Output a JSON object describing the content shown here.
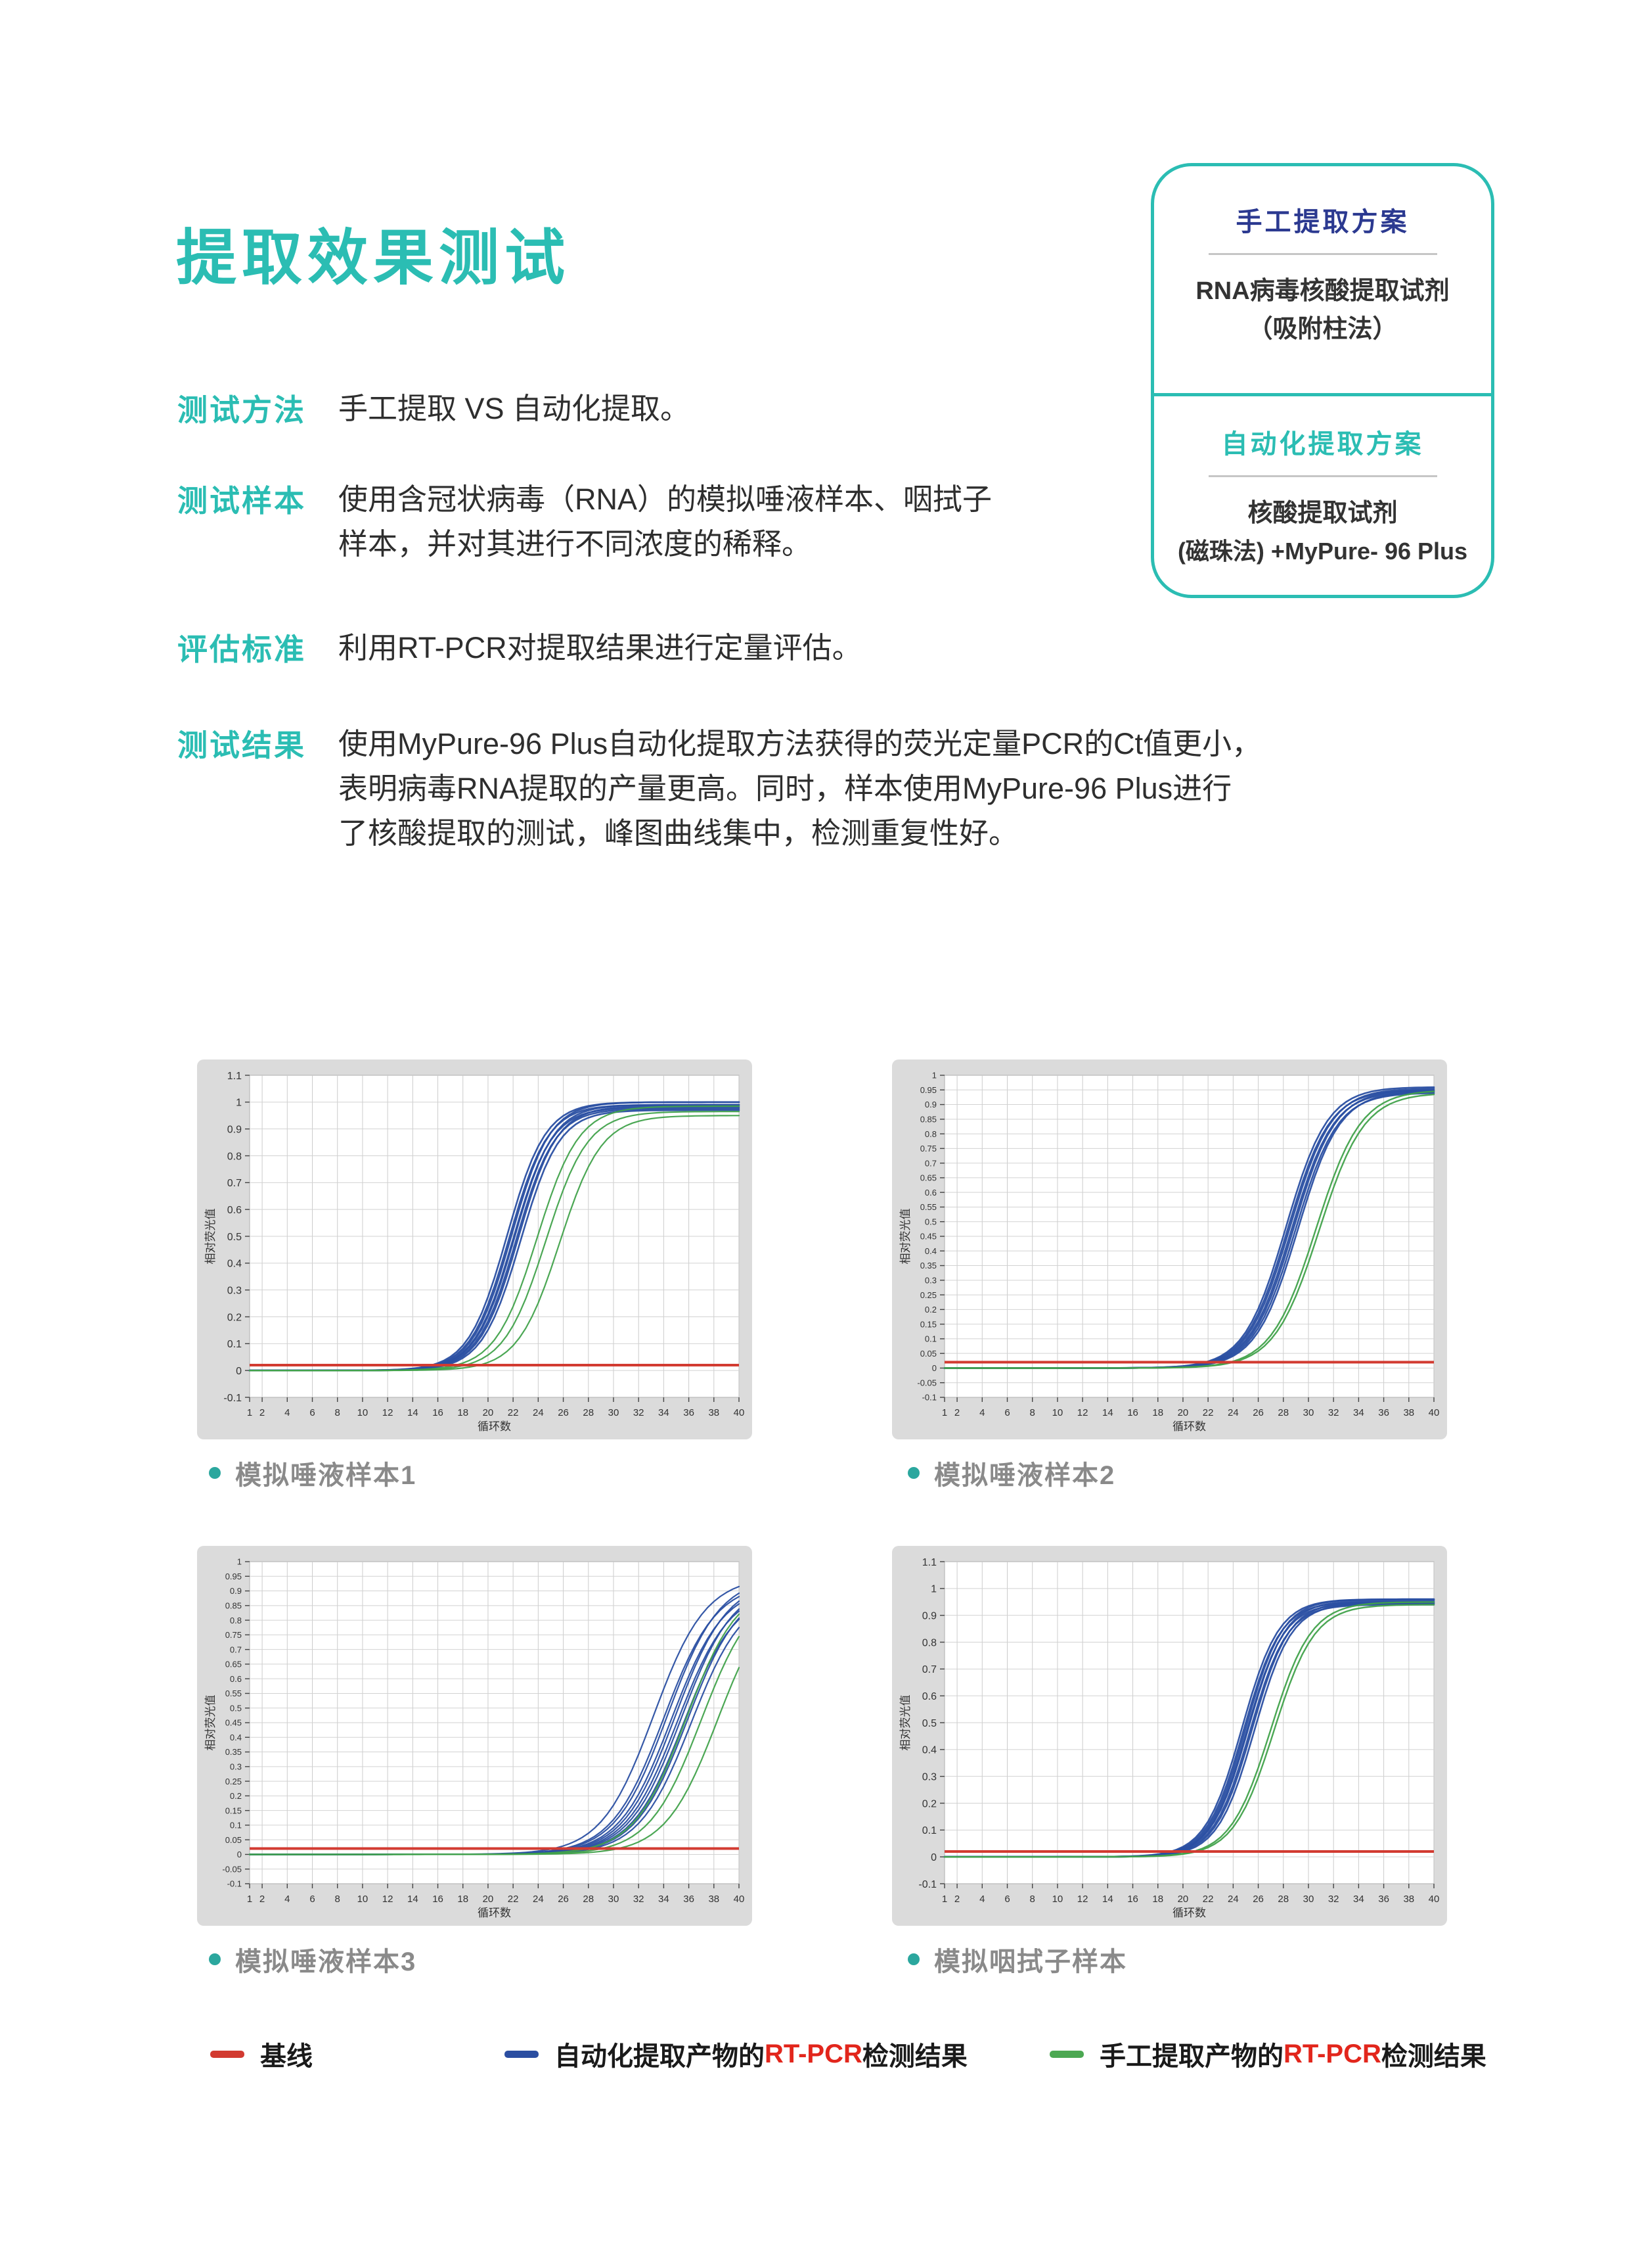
{
  "header": {
    "title": "提取效果测试"
  },
  "colors": {
    "accent_teal": "#2BBDB3",
    "header_dark_blue": "#2B3990",
    "caption_gray": "#8A8A8A",
    "curve_blue": "#2A4FA2",
    "curve_green": "#41A24B",
    "baseline_red": "#D23B31",
    "legend_highlight_red": "#E2261C",
    "chart_panel_gray": "#DBDBDB"
  },
  "info_rows": [
    {
      "label": "测试方法",
      "lines": [
        "手工提取 VS 自动化提取。"
      ]
    },
    {
      "label": "测试样本",
      "lines": [
        "使用含冠状病毒（RNA）的模拟唾液样本、咽拭子",
        "样本，并对其进行不同浓度的稀释。"
      ]
    },
    {
      "label": "评估标准",
      "lines": [
        "利用RT-PCR对提取结果进行定量评估。"
      ]
    },
    {
      "label": "测试结果",
      "lines": [
        "使用MyPure-96 Plus自动化提取方法获得的荧光定量PCR的Ct值更小，",
        "表明病毒RNA提取的产量更高。同时，样本使用MyPure-96 Plus进行",
        "了核酸提取的测试，峰图曲线集中，检测重复性好。"
      ]
    }
  ],
  "scheme_box": {
    "sections": [
      {
        "title": "手工提取方案",
        "lines": [
          "RNA病毒核酸提取试剂",
          "（吸附柱法）"
        ]
      },
      {
        "title": "自动化提取方案",
        "lines": [
          "核酸提取试剂",
          "(磁珠法) +MyPure- 96 Plus"
        ]
      }
    ]
  },
  "chart_data": [
    {
      "type": "line",
      "title": "模拟唾液样本1",
      "xlabel": "循环数",
      "ylabel": "相对荧光值",
      "xlim": [
        1,
        40
      ],
      "ylim": [
        -0.1,
        1.1
      ],
      "ytick_step": 0.1,
      "xticks": [
        1,
        2,
        4,
        6,
        8,
        10,
        12,
        14,
        16,
        18,
        20,
        22,
        24,
        26,
        28,
        30,
        32,
        34,
        36,
        38,
        40
      ],
      "grid": true,
      "panel_color": "#DBDBDB",
      "baseline": {
        "name": "基线",
        "color": "#D23B31",
        "value": 0.02
      },
      "series": [
        {
          "name": "自动化提取产物的RT-PCR检测结果",
          "color": "#2A4FA2",
          "stroke_width": 2.6,
          "curves": [
            {
              "ct": 21.5,
              "slope": 0.65,
              "plateau": 1.0
            },
            {
              "ct": 21.7,
              "slope": 0.65,
              "plateau": 0.99
            },
            {
              "ct": 21.85,
              "slope": 0.65,
              "plateau": 1.0
            },
            {
              "ct": 22.0,
              "slope": 0.65,
              "plateau": 0.98
            },
            {
              "ct": 22.1,
              "slope": 0.65,
              "plateau": 0.99
            },
            {
              "ct": 22.25,
              "slope": 0.65,
              "plateau": 0.975
            },
            {
              "ct": 22.4,
              "slope": 0.65,
              "plateau": 0.985
            },
            {
              "ct": 22.6,
              "slope": 0.65,
              "plateau": 0.97
            }
          ]
        },
        {
          "name": "手工提取产物的RT-PCR检测结果",
          "color": "#41A24B",
          "stroke_width": 2.2,
          "curves": [
            {
              "ct": 23.9,
              "slope": 0.6,
              "plateau": 0.985
            },
            {
              "ct": 24.6,
              "slope": 0.6,
              "plateau": 0.965
            },
            {
              "ct": 25.7,
              "slope": 0.6,
              "plateau": 0.95
            }
          ]
        }
      ]
    },
    {
      "type": "line",
      "title": "模拟唾液样本2",
      "xlabel": "循环数",
      "ylabel": "相对荧光值",
      "xlim": [
        1,
        40
      ],
      "ylim": [
        -0.1,
        1.0
      ],
      "ytick_step": 0.05,
      "xticks": [
        1,
        2,
        4,
        6,
        8,
        10,
        12,
        14,
        16,
        18,
        20,
        22,
        24,
        26,
        28,
        30,
        32,
        34,
        36,
        38,
        40
      ],
      "grid": true,
      "panel_color": "#DBDBDB",
      "baseline": {
        "name": "基线",
        "color": "#D23B31",
        "value": 0.02
      },
      "series": [
        {
          "name": "自动化提取产物的RT-PCR检测结果",
          "color": "#2A4FA2",
          "stroke_width": 2.6,
          "curves": [
            {
              "ct": 28.2,
              "slope": 0.6,
              "plateau": 0.96
            },
            {
              "ct": 28.35,
              "slope": 0.6,
              "plateau": 0.95
            },
            {
              "ct": 28.5,
              "slope": 0.6,
              "plateau": 0.955
            },
            {
              "ct": 28.65,
              "slope": 0.6,
              "plateau": 0.945
            },
            {
              "ct": 28.8,
              "slope": 0.6,
              "plateau": 0.95
            },
            {
              "ct": 28.95,
              "slope": 0.6,
              "plateau": 0.94
            },
            {
              "ct": 29.15,
              "slope": 0.6,
              "plateau": 0.945
            }
          ]
        },
        {
          "name": "手工提取产物的RT-PCR检测结果",
          "color": "#41A24B",
          "stroke_width": 2.4,
          "curves": [
            {
              "ct": 30.6,
              "slope": 0.56,
              "plateau": 0.95
            },
            {
              "ct": 30.85,
              "slope": 0.56,
              "plateau": 0.94
            }
          ]
        }
      ]
    },
    {
      "type": "line",
      "title": "模拟唾液样本3",
      "xlabel": "循环数",
      "ylabel": "相对荧光值",
      "xlim": [
        1,
        40
      ],
      "ylim": [
        -0.1,
        1.0
      ],
      "ytick_step": 0.05,
      "xticks": [
        1,
        2,
        4,
        6,
        8,
        10,
        12,
        14,
        16,
        18,
        20,
        22,
        24,
        26,
        28,
        30,
        32,
        34,
        36,
        38,
        40
      ],
      "grid": true,
      "panel_color": "#DBDBDB",
      "baseline": {
        "name": "基线",
        "color": "#D23B31",
        "value": 0.02
      },
      "series": [
        {
          "name": "自动化提取产物的RT-PCR检测结果",
          "color": "#2A4FA2",
          "stroke_width": 2.2,
          "curves": [
            {
              "ct": 33.2,
              "slope": 0.48,
              "plateau": 0.95
            },
            {
              "ct": 34.0,
              "slope": 0.48,
              "plateau": 0.93
            },
            {
              "ct": 34.3,
              "slope": 0.48,
              "plateau": 0.95
            },
            {
              "ct": 34.6,
              "slope": 0.48,
              "plateau": 0.92
            },
            {
              "ct": 34.9,
              "slope": 0.48,
              "plateau": 0.94
            },
            {
              "ct": 35.1,
              "slope": 0.48,
              "plateau": 0.91
            },
            {
              "ct": 35.4,
              "slope": 0.48,
              "plateau": 0.93
            },
            {
              "ct": 35.6,
              "slope": 0.48,
              "plateau": 0.9
            },
            {
              "ct": 35.9,
              "slope": 0.48,
              "plateau": 0.92
            },
            {
              "ct": 36.2,
              "slope": 0.48,
              "plateau": 0.9
            }
          ]
        },
        {
          "name": "手工提取产物的RT-PCR检测结果",
          "color": "#41A24B",
          "stroke_width": 2.2,
          "curves": [
            {
              "ct": 35.8,
              "slope": 0.48,
              "plateau": 0.93
            },
            {
              "ct": 37.0,
              "slope": 0.48,
              "plateau": 0.92
            },
            {
              "ct": 38.3,
              "slope": 0.48,
              "plateau": 0.92
            }
          ]
        }
      ]
    },
    {
      "type": "line",
      "title": "模拟咽拭子样本",
      "xlabel": "循环数",
      "ylabel": "相对荧光值",
      "xlim": [
        1,
        40
      ],
      "ylim": [
        -0.1,
        1.1
      ],
      "ytick_step": 0.1,
      "xticks": [
        1,
        2,
        4,
        6,
        8,
        10,
        12,
        14,
        16,
        18,
        20,
        22,
        24,
        26,
        28,
        30,
        32,
        34,
        36,
        38,
        40
      ],
      "grid": true,
      "panel_color": "#DBDBDB",
      "baseline": {
        "name": "基线",
        "color": "#D23B31",
        "value": 0.02
      },
      "series": [
        {
          "name": "自动化提取产物的RT-PCR检测结果",
          "color": "#2A4FA2",
          "stroke_width": 2.6,
          "curves": [
            {
              "ct": 24.7,
              "slope": 0.68,
              "plateau": 0.96
            },
            {
              "ct": 24.85,
              "slope": 0.68,
              "plateau": 0.95
            },
            {
              "ct": 25.0,
              "slope": 0.68,
              "plateau": 0.96
            },
            {
              "ct": 25.1,
              "slope": 0.68,
              "plateau": 0.945
            },
            {
              "ct": 25.2,
              "slope": 0.68,
              "plateau": 0.955
            },
            {
              "ct": 25.35,
              "slope": 0.68,
              "plateau": 0.94
            },
            {
              "ct": 25.5,
              "slope": 0.68,
              "plateau": 0.95
            },
            {
              "ct": 25.7,
              "slope": 0.68,
              "plateau": 0.945
            }
          ]
        },
        {
          "name": "手工提取产物的RT-PCR检测结果",
          "color": "#41A24B",
          "stroke_width": 2.4,
          "curves": [
            {
              "ct": 27.0,
              "slope": 0.62,
              "plateau": 0.95
            },
            {
              "ct": 27.25,
              "slope": 0.62,
              "plateau": 0.94
            }
          ]
        }
      ]
    }
  ],
  "legend": {
    "items": [
      {
        "prefix": "基线",
        "highlight": "",
        "suffix": "",
        "swatch_color": "#D23B31"
      },
      {
        "prefix": "自动化提取产物的",
        "highlight": "RT-PCR",
        "suffix": "检测结果",
        "swatch_color": "#2B4EA1"
      },
      {
        "prefix": "手工提取产物的",
        "highlight": "RT-PCR",
        "suffix": "检测结果",
        "swatch_color": "#4CA852"
      }
    ]
  }
}
